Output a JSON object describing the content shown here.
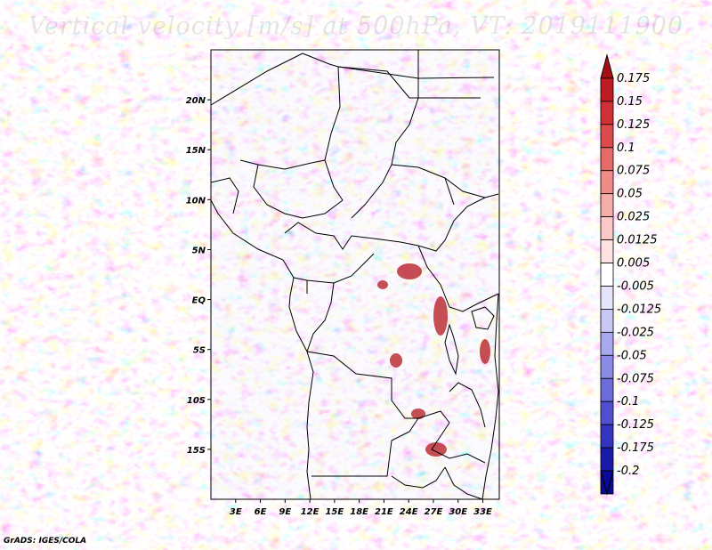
{
  "title": "Vertical velocity [m/s] at 500hPa, VT: 2019111900",
  "credit": "GrADS: IGES/COLA",
  "map": {
    "lon_range": [
      0,
      35
    ],
    "lat_range": [
      -20,
      25
    ],
    "lat_ticks": [
      {
        "value": 20,
        "label": "20N"
      },
      {
        "value": 15,
        "label": "15N"
      },
      {
        "value": 10,
        "label": "10N"
      },
      {
        "value": 5,
        "label": "5N"
      },
      {
        "value": 0,
        "label": "EQ"
      },
      {
        "value": -5,
        "label": "5S"
      },
      {
        "value": -10,
        "label": "10S"
      },
      {
        "value": -15,
        "label": "15S"
      }
    ],
    "lon_ticks": [
      {
        "value": 3,
        "label": "3E"
      },
      {
        "value": 6,
        "label": "6E"
      },
      {
        "value": 9,
        "label": "9E"
      },
      {
        "value": 12,
        "label": "12E"
      },
      {
        "value": 15,
        "label": "15E"
      },
      {
        "value": 18,
        "label": "18E"
      },
      {
        "value": 21,
        "label": "21E"
      },
      {
        "value": 24,
        "label": "24E"
      },
      {
        "value": 27,
        "label": "27E"
      },
      {
        "value": 30,
        "label": "30E"
      },
      {
        "value": 33,
        "label": "33E"
      }
    ]
  },
  "colorbar": {
    "levels": [
      {
        "label": "0.175",
        "color": "#a50f15"
      },
      {
        "label": "0.15",
        "color": "#bc1c22"
      },
      {
        "label": "0.125",
        "color": "#cf3035"
      },
      {
        "label": "0.1",
        "color": "#dc4b4b"
      },
      {
        "label": "0.075",
        "color": "#e66a66"
      },
      {
        "label": "0.05",
        "color": "#ef8c88"
      },
      {
        "label": "0.025",
        "color": "#f5adaa"
      },
      {
        "label": "0.0125",
        "color": "#fac8c6"
      },
      {
        "label": "0.005",
        "color": "#fde2e1"
      },
      {
        "label": "-0.005",
        "color": "#ffffff"
      },
      {
        "label": "-0.0125",
        "color": "#e4e4fb"
      },
      {
        "label": "-0.025",
        "color": "#c8c8f5"
      },
      {
        "label": "-0.05",
        "color": "#a9a9ef"
      },
      {
        "label": "-0.075",
        "color": "#8b8be6"
      },
      {
        "label": "-0.1",
        "color": "#6c6cdb"
      },
      {
        "label": "-0.125",
        "color": "#4f4fcf"
      },
      {
        "label": "-0.175",
        "color": "#3434bf"
      },
      {
        "label": "-0.2",
        "color": "#1b1bab"
      }
    ],
    "bottom_color": "#0a0a96"
  }
}
